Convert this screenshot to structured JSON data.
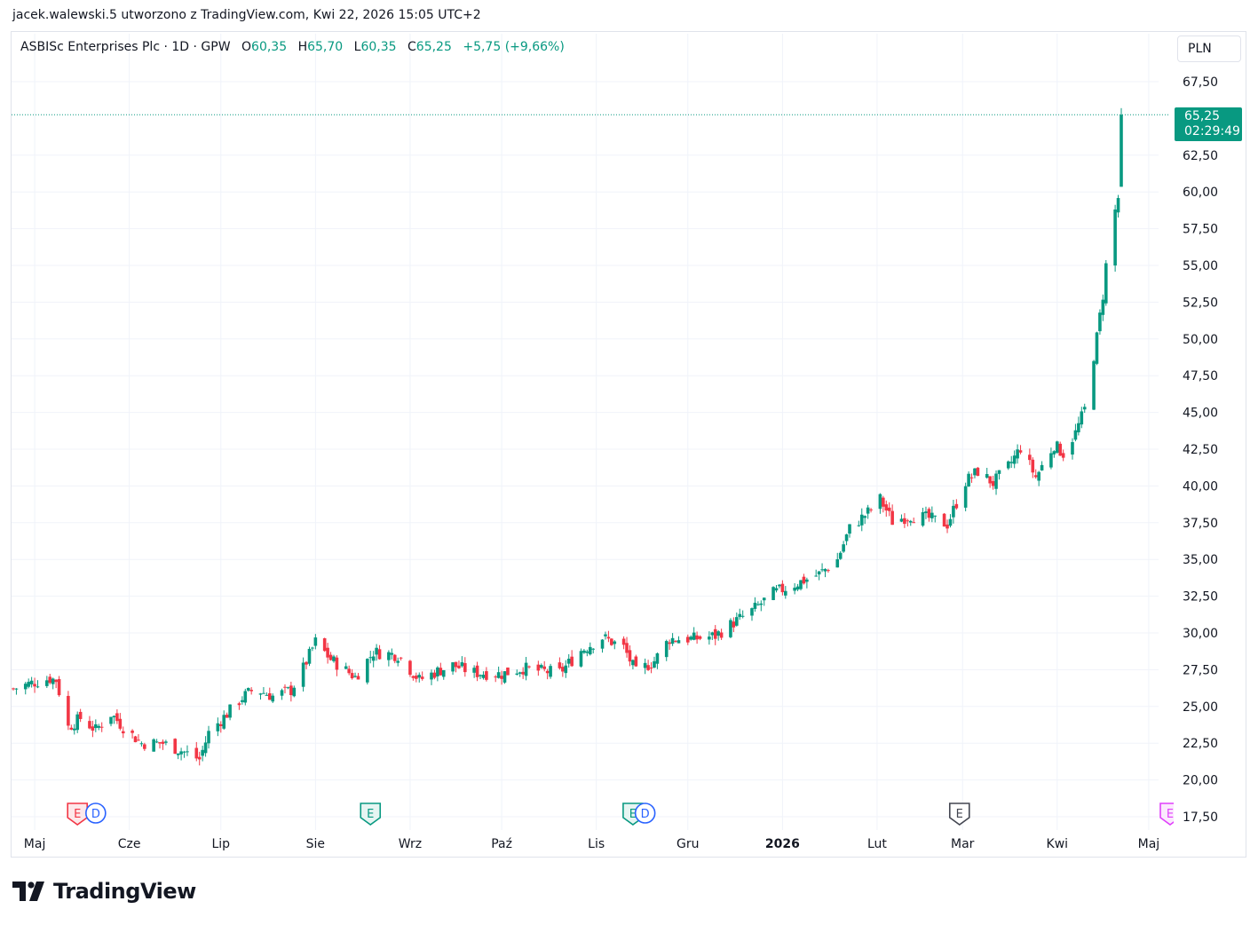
{
  "caption": "jacek.walewski.5 utworzono z TradingView.com, Kwi 22, 2026 15:05 UTC+2",
  "legend": {
    "symbol": "ASBISc Enterprises Plc · 1D · GPW",
    "open_label": "O",
    "open": "60,35",
    "high_label": "H",
    "high": "65,70",
    "low_label": "L",
    "low": "60,35",
    "close_label": "C",
    "close": "65,25",
    "change": "+5,75 (+9,66%)"
  },
  "currency": "PLN",
  "last_price": {
    "price": "65,25",
    "countdown": "02:29:49"
  },
  "brand": "TradingView",
  "colors": {
    "up": "#089981",
    "down": "#f23645",
    "grid": "#f0f3fa",
    "text": "#131722"
  },
  "chart_data": {
    "type": "candlestick",
    "y_axis": {
      "min": 17.5,
      "max": 67.5,
      "step": 2.5,
      "position": "right",
      "ticks": [
        "67,50",
        "62,50",
        "60,00",
        "57,50",
        "55,00",
        "52,50",
        "50,00",
        "47,50",
        "45,00",
        "42,50",
        "40,00",
        "37,50",
        "35,00",
        "32,50",
        "30,00",
        "27,50",
        "25,00",
        "22,50",
        "20,00",
        "17,50"
      ]
    },
    "x_axis": {
      "start": "2025-04-24",
      "end": "2026-05-08",
      "labels": [
        {
          "date": "2025-05-01",
          "text": "Maj",
          "bold": false
        },
        {
          "date": "2025-06-01",
          "text": "Cze",
          "bold": false
        },
        {
          "date": "2025-07-01",
          "text": "Lip",
          "bold": false
        },
        {
          "date": "2025-08-01",
          "text": "Sie",
          "bold": false
        },
        {
          "date": "2025-09-01",
          "text": "Wrz",
          "bold": false
        },
        {
          "date": "2025-10-01",
          "text": "Paź",
          "bold": false
        },
        {
          "date": "2025-11-01",
          "text": "Lis",
          "bold": false
        },
        {
          "date": "2025-12-01",
          "text": "Gru",
          "bold": false
        },
        {
          "date": "2026-01-01",
          "text": "2026",
          "bold": true
        },
        {
          "date": "2026-02-01",
          "text": "Lut",
          "bold": false
        },
        {
          "date": "2026-03-01",
          "text": "Mar",
          "bold": false
        },
        {
          "date": "2026-04-01",
          "text": "Kwi",
          "bold": false
        },
        {
          "date": "2026-05-01",
          "text": "Maj",
          "bold": false
        }
      ]
    },
    "grid": true,
    "last_price_line": 65.25,
    "anchors": [
      [
        "2025-04-24",
        26.2
      ],
      [
        "2025-04-30",
        26.6
      ],
      [
        "2025-05-06",
        26.9
      ],
      [
        "2025-05-08",
        26.8
      ],
      [
        "2025-05-12",
        23.6
      ],
      [
        "2025-05-16",
        24.2
      ],
      [
        "2025-05-21",
        23.4
      ],
      [
        "2025-05-26",
        24.5
      ],
      [
        "2025-05-30",
        23.6
      ],
      [
        "2025-06-05",
        22.5
      ],
      [
        "2025-06-12",
        22.5
      ],
      [
        "2025-06-18",
        22.0
      ],
      [
        "2025-06-24",
        21.4
      ],
      [
        "2025-06-27",
        23.2
      ],
      [
        "2025-07-03",
        24.5
      ],
      [
        "2025-07-08",
        25.6
      ],
      [
        "2025-07-12",
        26.2
      ],
      [
        "2025-07-18",
        25.7
      ],
      [
        "2025-07-24",
        26.1
      ],
      [
        "2025-07-28",
        27.6
      ],
      [
        "2025-08-01",
        29.4
      ],
      [
        "2025-08-06",
        28.2
      ],
      [
        "2025-08-14",
        27.0
      ],
      [
        "2025-08-20",
        28.7
      ],
      [
        "2025-08-28",
        28.5
      ],
      [
        "2025-09-04",
        26.8
      ],
      [
        "2025-09-10",
        27.4
      ],
      [
        "2025-09-15",
        27.8
      ],
      [
        "2025-09-22",
        27.3
      ],
      [
        "2025-10-01",
        27.2
      ],
      [
        "2025-10-08",
        27.6
      ],
      [
        "2025-10-14",
        27.4
      ],
      [
        "2025-10-20",
        27.3
      ],
      [
        "2025-10-27",
        28.8
      ],
      [
        "2025-11-03",
        29.7
      ],
      [
        "2025-11-10",
        29.0
      ],
      [
        "2025-11-14",
        27.3
      ],
      [
        "2025-11-20",
        28.1
      ],
      [
        "2025-11-25",
        29.6
      ],
      [
        "2025-12-03",
        29.6
      ],
      [
        "2025-12-10",
        29.8
      ],
      [
        "2025-12-16",
        30.7
      ],
      [
        "2025-12-22",
        31.5
      ],
      [
        "2025-12-29",
        32.7
      ],
      [
        "2026-01-06",
        33.4
      ],
      [
        "2026-01-13",
        34.0
      ],
      [
        "2026-01-19",
        35.0
      ],
      [
        "2026-01-23",
        37.1
      ],
      [
        "2026-01-29",
        38.2
      ],
      [
        "2026-02-02",
        39.1
      ],
      [
        "2026-02-06",
        37.6
      ],
      [
        "2026-02-12",
        38.0
      ],
      [
        "2026-02-18",
        37.8
      ],
      [
        "2026-02-24",
        37.4
      ],
      [
        "2026-03-02",
        40.3
      ],
      [
        "2026-03-06",
        41.0
      ],
      [
        "2026-03-11",
        40.2
      ],
      [
        "2026-03-16",
        41.3
      ],
      [
        "2026-03-20",
        42.6
      ],
      [
        "2026-03-25",
        40.6
      ],
      [
        "2026-03-31",
        42.8
      ],
      [
        "2026-04-03",
        42.2
      ],
      [
        "2026-04-07",
        43.6
      ],
      [
        "2026-04-10",
        45.2
      ],
      [
        "2026-04-14",
        50.1
      ],
      [
        "2026-04-16",
        53.0
      ],
      [
        "2026-04-18",
        57.0
      ],
      [
        "2026-04-21",
        59.6
      ],
      [
        "2026-04-22",
        65.25
      ]
    ],
    "earnings_markers": [
      {
        "date": "2025-05-15",
        "label": "E",
        "style": "red"
      },
      {
        "date": "2025-05-21",
        "label": "D",
        "style": "blue"
      },
      {
        "date": "2025-08-19",
        "label": "E",
        "style": "green"
      },
      {
        "date": "2025-11-13",
        "label": "E",
        "style": "green"
      },
      {
        "date": "2025-11-17",
        "label": "D",
        "style": "blue"
      },
      {
        "date": "2026-02-28",
        "label": "E",
        "style": "gray"
      },
      {
        "date": "2026-05-12",
        "label": "E",
        "style": "purple"
      }
    ]
  }
}
